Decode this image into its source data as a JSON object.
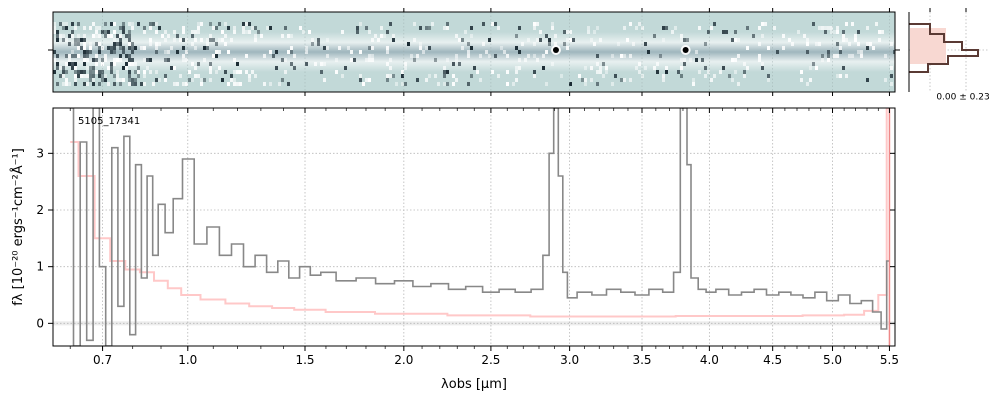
{
  "chart_data": [
    {
      "type": "image",
      "panel": "2D spectrum",
      "colormap": "bone-blue",
      "features": [
        {
          "x": 2.91,
          "kind": "emission-knot"
        },
        {
          "x": 3.82,
          "kind": "emission-knot"
        }
      ]
    },
    {
      "type": "line",
      "panel": "1D spectrum",
      "label": "5105_17341",
      "xlabel": "λobs [μm]",
      "ylabel": "fλ [10⁻²⁰ ergs⁻¹cm⁻²Å⁻¹]",
      "xscale": "sqrt",
      "xlim": [
        0.55,
        5.55
      ],
      "ylim": [
        -0.4,
        3.8
      ],
      "xticks": [
        "0.7",
        "1.0",
        "1.5",
        "2.0",
        "2.5",
        "3.0",
        "3.5",
        "4.0",
        "4.5",
        "5.0",
        "5.5"
      ],
      "yticks": [
        "0",
        "1",
        "2",
        "3"
      ],
      "grid": true,
      "series": [
        {
          "role": "flux",
          "color": "#888888",
          "x": [
            0.6,
            0.62,
            0.64,
            0.66,
            0.68,
            0.7,
            0.72,
            0.74,
            0.76,
            0.78,
            0.8,
            0.82,
            0.84,
            0.86,
            0.88,
            0.9,
            0.93,
            0.96,
            1.0,
            1.05,
            1.1,
            1.15,
            1.2,
            1.25,
            1.3,
            1.35,
            1.4,
            1.45,
            1.5,
            1.55,
            1.6,
            1.7,
            1.8,
            1.9,
            2.0,
            2.1,
            2.2,
            2.3,
            2.4,
            2.5,
            2.6,
            2.7,
            2.8,
            2.85,
            2.88,
            2.91,
            2.94,
            2.97,
            3.0,
            3.1,
            3.2,
            3.3,
            3.4,
            3.5,
            3.6,
            3.7,
            3.76,
            3.8,
            3.82,
            3.84,
            3.88,
            3.95,
            4.0,
            4.1,
            4.2,
            4.3,
            4.4,
            4.5,
            4.6,
            4.7,
            4.8,
            4.9,
            5.0,
            5.1,
            5.2,
            5.3,
            5.4,
            5.45,
            5.5
          ],
          "y": [
            3.8,
            -0.4,
            3.2,
            -0.3,
            3.8,
            1.0,
            -0.4,
            3.1,
            0.3,
            3.3,
            -0.2,
            2.8,
            0.8,
            2.6,
            1.2,
            2.1,
            1.6,
            2.2,
            2.9,
            1.4,
            1.7,
            1.2,
            1.4,
            1.0,
            1.2,
            0.9,
            1.1,
            0.8,
            1.0,
            0.85,
            0.9,
            0.75,
            0.8,
            0.7,
            0.75,
            0.65,
            0.7,
            0.6,
            0.65,
            0.55,
            0.6,
            0.55,
            0.6,
            1.2,
            3.0,
            3.8,
            2.6,
            0.9,
            0.45,
            0.55,
            0.5,
            0.6,
            0.55,
            0.5,
            0.6,
            0.55,
            0.9,
            3.8,
            3.8,
            2.8,
            0.8,
            0.6,
            0.55,
            0.6,
            0.5,
            0.55,
            0.6,
            0.5,
            0.55,
            0.5,
            0.45,
            0.55,
            0.4,
            0.5,
            0.35,
            0.4,
            0.2,
            -0.1,
            1.1
          ]
        },
        {
          "role": "uncertainty",
          "color": "#ffc8c8",
          "x": [
            0.6,
            0.65,
            0.7,
            0.75,
            0.8,
            0.85,
            0.9,
            0.95,
            1.0,
            1.1,
            1.2,
            1.3,
            1.4,
            1.5,
            1.7,
            2.0,
            2.5,
            3.0,
            3.5,
            4.0,
            4.5,
            5.0,
            5.2,
            5.35,
            5.45,
            5.5
          ],
          "y": [
            3.2,
            2.6,
            1.5,
            1.1,
            0.95,
            0.9,
            0.75,
            0.62,
            0.5,
            0.42,
            0.35,
            0.3,
            0.27,
            0.24,
            0.2,
            0.17,
            0.14,
            0.12,
            0.12,
            0.13,
            0.13,
            0.14,
            0.15,
            0.22,
            0.5,
            3.8
          ]
        }
      ]
    },
    {
      "type": "histogram",
      "panel": "noise distribution",
      "label": "0.00 ± 0.23"
    }
  ]
}
